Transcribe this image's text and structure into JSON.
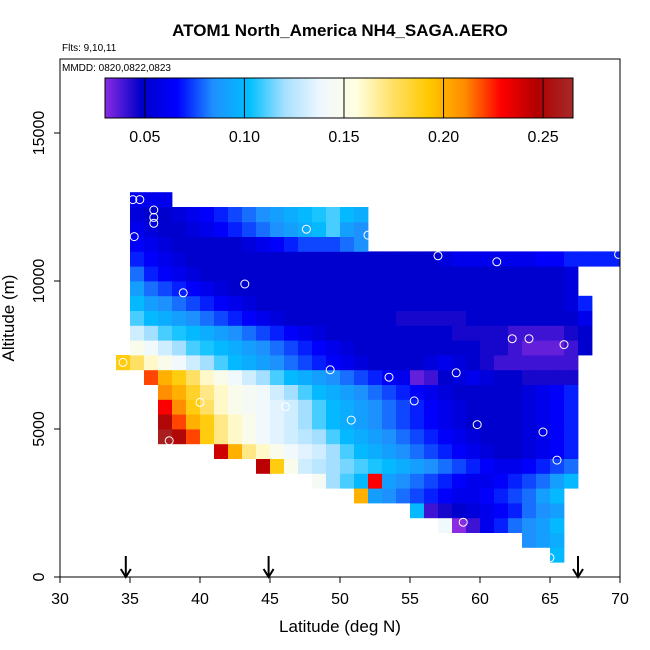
{
  "chart_data": {
    "type": "heatmap",
    "title": "ATOM1 North_America NH4_SAGA.AERO",
    "flights_label": "Flts: 9,10,11",
    "dates_label": "MMDD: 0820,0822,0823",
    "xlabel": "Latitude (deg N)",
    "ylabel": "Altitude (m)",
    "xlim": [
      30,
      70
    ],
    "ylim": [
      0,
      17500
    ],
    "x_ticks": [
      30,
      35,
      40,
      45,
      50,
      55,
      60,
      65,
      70
    ],
    "y_ticks": [
      0,
      5000,
      10000,
      15000
    ],
    "x_tick_labels": [
      "30",
      "35",
      "40",
      "45",
      "50",
      "55",
      "60",
      "65",
      "70"
    ],
    "y_tick_labels": [
      "0",
      "5000",
      "10000",
      "15000"
    ],
    "colorbar": {
      "range": [
        0.03,
        0.265
      ],
      "ticks": [
        0.05,
        0.1,
        0.15,
        0.2,
        0.25
      ],
      "tick_labels": [
        "0.05",
        "0.10",
        "0.15",
        "0.20",
        "0.25"
      ],
      "colors": [
        "#8a2be2",
        "#0000c8",
        "#0000ff",
        "#1e90ff",
        "#00bfff",
        "#a8e0ff",
        "#f0f8ff",
        "#ffffe0",
        "#ffe066",
        "#ffc800",
        "#ff8c00",
        "#ff0000",
        "#b20000",
        "#a52a2a"
      ]
    },
    "lat_cell_deg": 1.0,
    "alt_cell_m": 500,
    "grid_rows": [
      {
        "alt": 750,
        "lat_start": 65,
        "values": [
          0.1
        ]
      },
      {
        "alt": 1250,
        "lat_start": 63,
        "values": [
          0.085,
          0.09,
          0.095
        ]
      },
      {
        "alt": 1750,
        "lat_start": 57,
        "values": [
          0.14,
          0.03,
          0.04,
          0.06,
          0.07,
          0.08,
          0.085,
          0.09,
          0.1
        ]
      },
      {
        "alt": 2250,
        "lat_start": 55,
        "values": [
          0.1,
          0.04,
          0.045,
          0.05,
          0.055,
          0.06,
          0.065,
          0.07,
          0.08,
          0.085,
          0.09
        ]
      },
      {
        "alt": 2750,
        "lat_start": 51,
        "values": [
          0.2,
          0.09,
          0.085,
          0.08,
          0.075,
          0.07,
          0.065,
          0.06,
          0.06,
          0.065,
          0.07,
          0.075,
          0.08,
          0.09,
          0.1
        ]
      },
      {
        "alt": 3250,
        "lat_start": 48,
        "values": [
          0.145,
          0.12,
          0.11,
          0.1,
          0.095,
          0.09,
          0.085,
          0.08,
          0.075,
          0.07,
          0.065,
          0.06,
          0.06,
          0.065,
          0.07,
          0.075,
          0.08,
          0.09,
          0.1
        ]
      },
      {
        "alt": 3750,
        "lat_start": 44,
        "values": [
          0.245,
          0.19,
          0.15,
          0.13,
          0.125,
          0.12,
          0.115,
          0.11,
          0.105,
          0.1,
          0.095,
          0.09,
          0.085,
          0.08,
          0.075,
          0.07,
          0.065,
          0.06,
          0.06,
          0.065,
          0.07,
          0.075,
          0.08
        ]
      },
      {
        "alt": 4250,
        "lat_start": 41,
        "values": [
          0.24,
          0.2,
          0.17,
          0.16,
          0.15,
          0.14,
          0.135,
          0.13,
          0.12,
          0.11,
          0.1,
          0.095,
          0.09,
          0.085,
          0.08,
          0.075,
          0.07,
          0.065,
          0.06,
          0.055,
          0.05,
          0.05,
          0.055,
          0.06,
          0.065,
          0.07
        ]
      },
      {
        "alt": 4750,
        "lat_start": 37,
        "values": [
          0.26,
          0.25,
          0.22,
          0.19,
          0.17,
          0.16,
          0.15,
          0.14,
          0.135,
          0.13,
          0.125,
          0.12,
          0.11,
          0.1,
          0.095,
          0.09,
          0.085,
          0.08,
          0.075,
          0.07,
          0.065,
          0.06,
          0.055,
          0.05,
          0.05,
          0.05,
          0.055,
          0.06,
          0.065,
          0.07
        ]
      },
      {
        "alt": 5250,
        "lat_start": 37,
        "values": [
          0.25,
          0.22,
          0.2,
          0.19,
          0.17,
          0.16,
          0.15,
          0.14,
          0.135,
          0.13,
          0.12,
          0.11,
          0.1,
          0.095,
          0.09,
          0.085,
          0.08,
          0.075,
          0.07,
          0.065,
          0.06,
          0.055,
          0.05,
          0.05,
          0.05,
          0.05,
          0.055,
          0.06,
          0.065,
          0.07
        ]
      },
      {
        "alt": 5750,
        "lat_start": 37,
        "values": [
          0.23,
          0.21,
          0.19,
          0.175,
          0.16,
          0.15,
          0.145,
          0.14,
          0.135,
          0.13,
          0.12,
          0.11,
          0.1,
          0.095,
          0.09,
          0.085,
          0.08,
          0.075,
          0.07,
          0.065,
          0.06,
          0.055,
          0.05,
          0.05,
          0.05,
          0.05,
          0.055,
          0.06,
          0.065,
          0.07
        ]
      },
      {
        "alt": 6250,
        "lat_start": 37,
        "values": [
          0.21,
          0.2,
          0.185,
          0.17,
          0.16,
          0.15,
          0.145,
          0.14,
          0.13,
          0.12,
          0.11,
          0.1,
          0.095,
          0.09,
          0.085,
          0.08,
          0.075,
          0.07,
          0.065,
          0.06,
          0.055,
          0.05,
          0.05,
          0.05,
          0.05,
          0.05,
          0.055,
          0.06,
          0.065,
          0.07
        ]
      },
      {
        "alt": 6750,
        "lat_start": 36,
        "values": [
          0.22,
          0.2,
          0.19,
          0.175,
          0.16,
          0.15,
          0.14,
          0.13,
          0.12,
          0.11,
          0.1,
          0.095,
          0.09,
          0.085,
          0.08,
          0.075,
          0.07,
          0.065,
          0.06,
          0.035,
          0.04,
          0.05,
          0.055,
          0.06,
          0.055,
          0.05,
          0.05,
          0.045,
          0.045,
          0.045,
          0.045
        ]
      },
      {
        "alt": 7250,
        "lat_start": 34,
        "values": [
          0.19,
          0.175,
          0.16,
          0.15,
          0.14,
          0.13,
          0.12,
          0.11,
          0.1,
          0.095,
          0.09,
          0.085,
          0.08,
          0.075,
          0.07,
          0.065,
          0.06,
          0.055,
          0.05,
          0.05,
          0.05,
          0.05,
          0.055,
          0.06,
          0.055,
          0.05,
          0.045,
          0.04,
          0.04,
          0.04,
          0.04,
          0.04,
          0.04
        ]
      },
      {
        "alt": 7750,
        "lat_start": 35,
        "values": [
          0.15,
          0.14,
          0.13,
          0.12,
          0.11,
          0.105,
          0.1,
          0.095,
          0.09,
          0.085,
          0.08,
          0.075,
          0.07,
          0.065,
          0.06,
          0.055,
          0.05,
          0.05,
          0.05,
          0.05,
          0.05,
          0.05,
          0.05,
          0.05,
          0.05,
          0.045,
          0.045,
          0.04,
          0.035,
          0.035,
          0.035,
          0.04,
          0.05
        ]
      },
      {
        "alt": 8250,
        "lat_start": 35,
        "values": [
          0.13,
          0.12,
          0.11,
          0.105,
          0.1,
          0.095,
          0.09,
          0.085,
          0.08,
          0.075,
          0.07,
          0.065,
          0.06,
          0.055,
          0.05,
          0.05,
          0.05,
          0.05,
          0.05,
          0.05,
          0.05,
          0.05,
          0.05,
          0.045,
          0.045,
          0.045,
          0.045,
          0.04,
          0.04,
          0.04,
          0.04,
          0.045,
          0.05
        ]
      },
      {
        "alt": 8750,
        "lat_start": 35,
        "values": [
          0.11,
          0.1,
          0.095,
          0.09,
          0.085,
          0.08,
          0.075,
          0.07,
          0.065,
          0.06,
          0.055,
          0.05,
          0.05,
          0.05,
          0.05,
          0.05,
          0.05,
          0.05,
          0.05,
          0.045,
          0.045,
          0.045,
          0.045,
          0.045,
          0.05,
          0.05,
          0.05,
          0.05,
          0.05,
          0.05,
          0.05,
          0.05,
          0.06
        ]
      },
      {
        "alt": 9250,
        "lat_start": 35,
        "values": [
          0.1,
          0.09,
          0.085,
          0.08,
          0.075,
          0.07,
          0.065,
          0.06,
          0.055,
          0.05,
          0.05,
          0.05,
          0.05,
          0.05,
          0.05,
          0.05,
          0.05,
          0.05,
          0.05,
          0.05,
          0.05,
          0.05,
          0.05,
          0.05,
          0.05,
          0.05,
          0.05,
          0.05,
          0.05,
          0.05,
          0.05,
          0.055,
          0.07
        ]
      },
      {
        "alt": 9750,
        "lat_start": 35,
        "values": [
          0.09,
          0.08,
          0.075,
          0.07,
          0.065,
          0.06,
          0.055,
          0.05,
          0.05,
          0.05,
          0.05,
          0.05,
          0.05,
          0.05,
          0.05,
          0.05,
          0.05,
          0.05,
          0.05,
          0.05,
          0.05,
          0.05,
          0.05,
          0.05,
          0.05,
          0.05,
          0.05,
          0.05,
          0.05,
          0.05,
          0.05,
          0.055
        ]
      },
      {
        "alt": 10250,
        "lat_start": 35,
        "values": [
          0.08,
          0.07,
          0.065,
          0.06,
          0.055,
          0.05,
          0.05,
          0.05,
          0.05,
          0.05,
          0.05,
          0.05,
          0.05,
          0.05,
          0.05,
          0.05,
          0.05,
          0.05,
          0.05,
          0.05,
          0.05,
          0.05,
          0.05,
          0.05,
          0.05,
          0.05,
          0.05,
          0.05,
          0.05,
          0.05,
          0.05,
          0.055
        ]
      },
      {
        "alt": 10750,
        "lat_start": 35,
        "values": [
          0.07,
          0.065,
          0.06,
          0.055,
          0.05,
          0.05,
          0.05,
          0.05,
          0.05,
          0.05,
          0.05,
          0.05,
          0.05,
          0.05,
          0.05,
          0.05,
          0.05,
          0.05,
          0.05,
          0.05,
          0.05,
          0.05,
          0.055,
          0.06,
          0.06,
          0.06,
          0.06,
          0.06,
          0.06,
          0.065,
          0.065,
          0.07,
          0.07,
          0.07,
          0.07
        ]
      },
      {
        "alt": 11250,
        "lat_start": 35,
        "values": [
          0.065,
          0.06,
          0.055,
          0.05,
          0.05,
          0.05,
          0.05,
          0.05,
          0.055,
          0.06,
          0.065,
          0.07,
          0.075,
          0.075,
          0.075,
          0.08,
          0.085
        ]
      },
      {
        "alt": 11750,
        "lat_start": 35,
        "values": [
          0.06,
          0.055,
          0.05,
          0.05,
          0.055,
          0.06,
          0.065,
          0.07,
          0.075,
          0.08,
          0.085,
          0.09,
          0.095,
          0.1,
          0.11,
          0.09,
          0.085
        ]
      },
      {
        "alt": 12250,
        "lat_start": 35,
        "values": [
          0.055,
          0.05,
          0.05,
          0.055,
          0.06,
          0.065,
          0.07,
          0.075,
          0.08,
          0.085,
          0.09,
          0.095,
          0.1,
          0.105,
          0.11,
          0.1,
          0.095
        ]
      },
      {
        "alt": 12750,
        "lat_start": 35,
        "values": [
          0.06,
          0.06,
          0.06
        ]
      }
    ],
    "overrides": [
      {
        "alt": 3250,
        "lat": 52,
        "value": 0.23
      },
      {
        "alt": 4250,
        "lat": 36,
        "value": 0.2
      },
      {
        "alt": 4750,
        "lat": 37,
        "value": 0.26
      }
    ],
    "sample_points": [
      {
        "lat": 35.2,
        "alt": 12750
      },
      {
        "lat": 35.7,
        "alt": 12750
      },
      {
        "lat": 36.7,
        "alt": 12400
      },
      {
        "lat": 36.7,
        "alt": 12150
      },
      {
        "lat": 36.7,
        "alt": 11950
      },
      {
        "lat": 35.3,
        "alt": 11500
      },
      {
        "lat": 47.6,
        "alt": 11750
      },
      {
        "lat": 52.0,
        "alt": 11550
      },
      {
        "lat": 57.0,
        "alt": 10850
      },
      {
        "lat": 61.2,
        "alt": 10650
      },
      {
        "lat": 69.9,
        "alt": 10900
      },
      {
        "lat": 43.2,
        "alt": 9900
      },
      {
        "lat": 38.8,
        "alt": 9600
      },
      {
        "lat": 62.3,
        "alt": 8050
      },
      {
        "lat": 63.5,
        "alt": 8050
      },
      {
        "lat": 66.0,
        "alt": 7850
      },
      {
        "lat": 34.5,
        "alt": 7250
      },
      {
        "lat": 49.3,
        "alt": 7000
      },
      {
        "lat": 53.5,
        "alt": 6750
      },
      {
        "lat": 58.3,
        "alt": 6900
      },
      {
        "lat": 36.6,
        "alt": 6050
      },
      {
        "lat": 40.0,
        "alt": 5900
      },
      {
        "lat": 46.1,
        "alt": 5750
      },
      {
        "lat": 55.3,
        "alt": 5950
      },
      {
        "lat": 50.8,
        "alt": 5300
      },
      {
        "lat": 59.8,
        "alt": 5150
      },
      {
        "lat": 64.5,
        "alt": 4900
      },
      {
        "lat": 37.8,
        "alt": 4600
      },
      {
        "lat": 65.5,
        "alt": 3950
      },
      {
        "lat": 58.8,
        "alt": 1850
      },
      {
        "lat": 65.0,
        "alt": 650
      }
    ],
    "flight_arrows_lat": [
      34.7,
      44.9,
      67.0
    ]
  }
}
